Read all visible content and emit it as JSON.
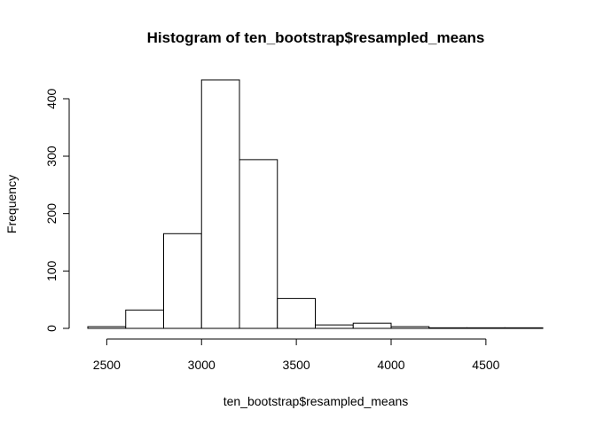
{
  "chart_data": {
    "type": "bar",
    "title": "Histogram of ten_bootstrap$resampled_means",
    "xlabel": "ten_bootstrap$resampled_means",
    "ylabel": "Frequency",
    "bin_edges": [
      2400,
      2600,
      2800,
      3000,
      3200,
      3400,
      3600,
      3800,
      4000,
      4200,
      4400,
      4600,
      4800
    ],
    "values": [
      3,
      32,
      165,
      433,
      294,
      52,
      6,
      9,
      3,
      1,
      1,
      1
    ],
    "xlim": [
      2400,
      4800
    ],
    "ylim": [
      0,
      433
    ],
    "x_ticks": [
      2500,
      3000,
      3500,
      4000,
      4500
    ],
    "y_ticks": [
      0,
      100,
      200,
      300,
      400
    ],
    "grid": false,
    "legend": "none"
  }
}
